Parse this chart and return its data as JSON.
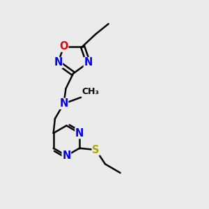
{
  "bg_color": "#ebebeb",
  "atom_colors": {
    "C": "#000000",
    "N": "#0000ee",
    "O": "#ee0000",
    "S": "#aaaa00",
    "H": "#000000"
  },
  "bond_color": "#000000",
  "bond_width": 1.8,
  "font_size": 10.5,
  "title": ""
}
